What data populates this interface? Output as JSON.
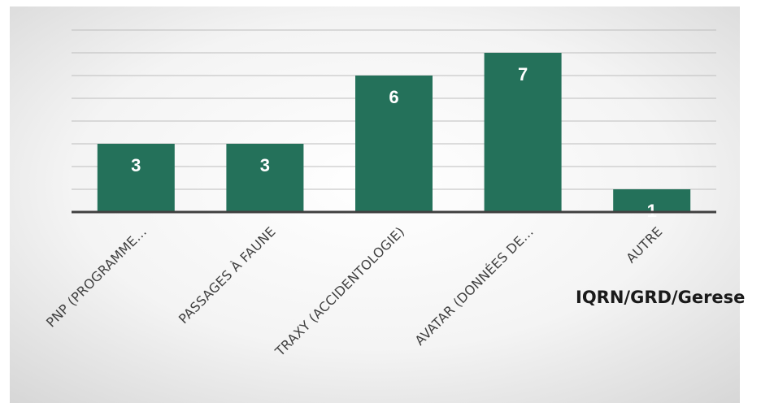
{
  "chart_data": {
    "type": "bar",
    "categories": [
      "PNP (PROGRAMME…",
      "PASSAGES À FAUNE",
      "TRAXY (ACCIDENTOLOGIE)",
      "AVATAR (DONNÉES DE…",
      "AUTRE"
    ],
    "values": [
      3,
      3,
      6,
      7,
      1
    ],
    "title": "",
    "xlabel": "",
    "ylabel": "",
    "ylim": [
      0,
      8
    ],
    "grid": true,
    "legend": "none",
    "colors": {
      "bar": "#24715a",
      "bar_label": "#ffffff",
      "gridline": "#bdbdbd",
      "axis": "#404040",
      "background_center": "#ffffff",
      "background_edge": "#d9d9d9"
    }
  },
  "overlay_note": "IQRN/GRD/Gerese"
}
